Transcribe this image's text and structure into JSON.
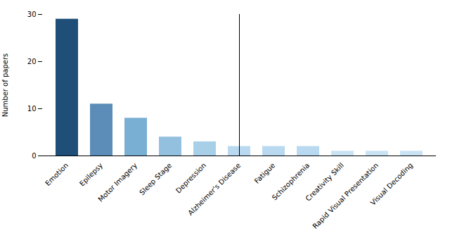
{
  "chart_data": {
    "type": "bar",
    "categories": [
      "Emotion",
      "Epilepsy",
      "Motor Imagery",
      "Sleep Stage",
      "Depression",
      "Alzheimer's Disease",
      "Fatigue",
      "Schizophrenia",
      "Creativity Skill",
      "Rapid Visual Presentation",
      "Visual Decoding"
    ],
    "values": [
      29,
      11,
      8,
      4,
      3,
      2,
      2,
      2,
      1,
      1,
      1
    ],
    "colors": [
      "#1f4e79",
      "#5b8db8",
      "#7aafd4",
      "#93c0df",
      "#a8cfe8",
      "#b8d9f0",
      "#b8d9f0",
      "#b8d9f0",
      "#c9e3f5",
      "#c9e3f5",
      "#c9e3f5"
    ],
    "ylabel": "Number of papers",
    "ylim": [
      0,
      30
    ],
    "yticks": [
      0,
      10,
      20,
      30
    ],
    "grid": false
  }
}
